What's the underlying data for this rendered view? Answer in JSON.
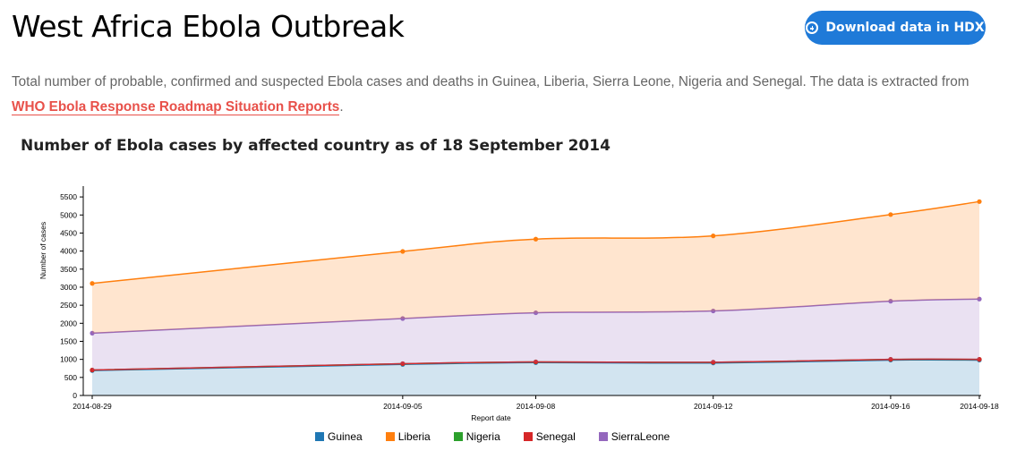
{
  "header": {
    "title": "West Africa Ebola Outbreak",
    "download_label": "Download data in HDX"
  },
  "description": {
    "text": "Total number of probable, confirmed and suspected Ebola cases and deaths in Guinea, Liberia, Sierra Leone, Nigeria and Senegal. The data is extracted from ",
    "link_text": "WHO Ebola Response Roadmap Situation Reports",
    "suffix": "."
  },
  "chart_title": "Number of Ebola cases by affected country as of 18 September 2014",
  "chart_data": {
    "type": "area",
    "xlabel": "Report date",
    "ylabel": "Number of cases",
    "ylim": [
      0,
      5800
    ],
    "yticks": [
      0,
      500,
      1000,
      1500,
      2000,
      2500,
      3000,
      3500,
      4000,
      4500,
      5000,
      5500
    ],
    "x": [
      "2014-08-29",
      "2014-09-05",
      "2014-09-08",
      "2014-09-12",
      "2014-09-16",
      "2014-09-18"
    ],
    "stacked": true,
    "series": [
      {
        "name": "Guinea",
        "color": "#1f77b4",
        "values": [
          690,
          860,
          910,
          900,
          980,
          980
        ]
      },
      {
        "name": "Liberia",
        "color": "#ff7f0e",
        "values": [
          1380,
          1860,
          2040,
          2080,
          2400,
          2700
        ]
      },
      {
        "name": "Nigeria",
        "color": "#2ca02c",
        "values": [
          15,
          20,
          20,
          20,
          20,
          20
        ]
      },
      {
        "name": "Senegal",
        "color": "#d62728",
        "values": [
          0,
          1,
          1,
          1,
          1,
          1
        ]
      },
      {
        "name": "SierraLeone",
        "color": "#9467bd",
        "values": [
          1020,
          1250,
          1360,
          1420,
          1610,
          1670
        ]
      }
    ],
    "legend_position": "bottom",
    "grid": false
  }
}
